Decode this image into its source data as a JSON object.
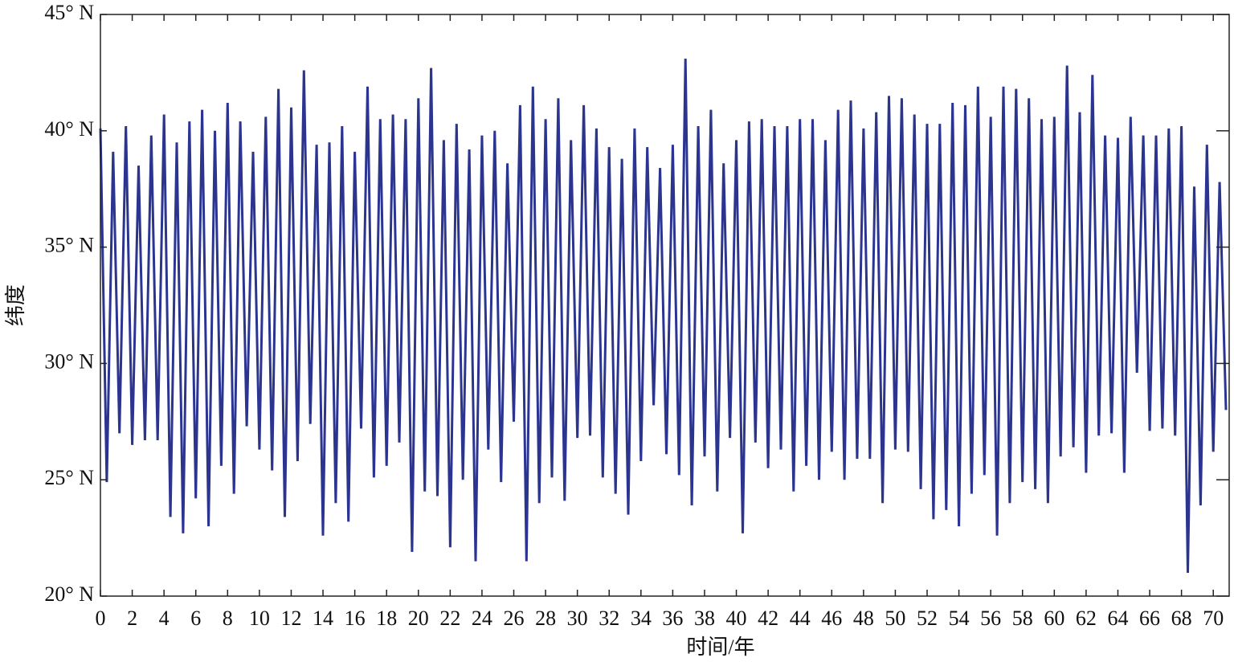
{
  "chart_data": {
    "type": "line",
    "x_label": "时间/年",
    "y_label": "纬度",
    "xlim": [
      0,
      71
    ],
    "ylim": [
      20,
      45
    ],
    "xticks": [
      0,
      2,
      4,
      6,
      8,
      10,
      12,
      14,
      16,
      18,
      20,
      22,
      24,
      26,
      28,
      30,
      32,
      34,
      36,
      38,
      40,
      42,
      44,
      46,
      48,
      50,
      52,
      54,
      56,
      58,
      60,
      62,
      64,
      66,
      68,
      70
    ],
    "yticks": [
      {
        "value": 20,
        "label": "20° N"
      },
      {
        "value": 25,
        "label": "25° N"
      },
      {
        "value": 30,
        "label": "30° N"
      },
      {
        "value": 35,
        "label": "35° N"
      },
      {
        "value": 40,
        "label": "40° N"
      },
      {
        "value": 45,
        "label": "45° N"
      }
    ],
    "series": [
      {
        "color": "#2b3590",
        "x": [
          0,
          0.4,
          0.8,
          1.2,
          1.6,
          2,
          2.4,
          2.8,
          3.2,
          3.6,
          4,
          4.4,
          4.8,
          5.2,
          5.6,
          6,
          6.4,
          6.8,
          7.2,
          7.6,
          8,
          8.4,
          8.8,
          9.2,
          9.6,
          10,
          10.4,
          10.8,
          11.2,
          11.6,
          12,
          12.4,
          12.8,
          13.2,
          13.6,
          14,
          14.4,
          14.8,
          15.2,
          15.6,
          16,
          16.4,
          16.8,
          17.2,
          17.6,
          18,
          18.4,
          18.8,
          19.2,
          19.6,
          20,
          20.4,
          20.8,
          21.2,
          21.6,
          22,
          22.4,
          22.8,
          23.2,
          23.6,
          24,
          24.4,
          24.8,
          25.2,
          25.6,
          26,
          26.4,
          26.8,
          27.2,
          27.6,
          28,
          28.4,
          28.8,
          29.2,
          29.6,
          30,
          30.4,
          30.8,
          31.2,
          31.6,
          32,
          32.4,
          32.8,
          33.2,
          33.6,
          34,
          34.4,
          34.8,
          35.2,
          35.6,
          36,
          36.4,
          36.8,
          37.2,
          37.6,
          38,
          38.4,
          38.8,
          39.2,
          39.6,
          40,
          40.4,
          40.8,
          41.2,
          41.6,
          42,
          42.4,
          42.8,
          43.2,
          43.6,
          44,
          44.4,
          44.8,
          45.2,
          45.6,
          46,
          46.4,
          46.8,
          47.2,
          47.6,
          48,
          48.4,
          48.8,
          49.2,
          49.6,
          50,
          50.4,
          50.8,
          51.2,
          51.6,
          52,
          52.4,
          52.8,
          53.2,
          53.6,
          54,
          54.4,
          54.8,
          55.2,
          55.6,
          56,
          56.4,
          56.8,
          57.2,
          57.6,
          58,
          58.4,
          58.8,
          59.2,
          59.6,
          60,
          60.4,
          60.8,
          61.2,
          61.6,
          62,
          62.4,
          62.8,
          63.2,
          63.6,
          64,
          64.4,
          64.8,
          65.2,
          65.6,
          66,
          66.4,
          66.8,
          67.2,
          67.6,
          68,
          68.4,
          68.8,
          69.2,
          69.6,
          70,
          70.4,
          70.8
        ],
        "values": [
          40.1,
          24.9,
          39.1,
          27.0,
          40.2,
          26.5,
          38.5,
          26.7,
          39.8,
          26.7,
          40.7,
          23.4,
          39.5,
          22.7,
          40.4,
          24.2,
          40.9,
          23.0,
          40.0,
          25.6,
          41.2,
          24.4,
          40.4,
          27.3,
          39.1,
          26.3,
          40.6,
          25.4,
          41.8,
          23.4,
          41.0,
          25.8,
          42.6,
          27.4,
          39.4,
          22.6,
          39.5,
          24.0,
          40.2,
          23.2,
          39.1,
          27.2,
          41.9,
          25.1,
          40.5,
          25.6,
          40.7,
          26.6,
          40.5,
          21.9,
          41.4,
          24.5,
          42.7,
          24.3,
          39.6,
          22.1,
          40.3,
          25.0,
          39.2,
          21.5,
          39.8,
          26.3,
          40.0,
          24.9,
          38.6,
          27.5,
          41.1,
          21.5,
          41.9,
          24.0,
          40.5,
          25.1,
          41.4,
          24.1,
          39.6,
          26.8,
          41.1,
          26.9,
          40.1,
          25.1,
          39.3,
          24.4,
          38.8,
          23.5,
          40.1,
          25.8,
          39.3,
          28.2,
          38.4,
          26.1,
          39.4,
          25.2,
          43.1,
          23.9,
          40.2,
          26.0,
          40.9,
          24.5,
          38.6,
          26.8,
          39.6,
          22.7,
          40.4,
          26.6,
          40.5,
          25.5,
          40.2,
          26.3,
          40.2,
          24.5,
          40.5,
          25.6,
          40.5,
          25.0,
          39.6,
          26.2,
          40.9,
          25.0,
          41.3,
          25.9,
          40.1,
          25.9,
          40.8,
          24.0,
          41.5,
          26.3,
          41.4,
          26.2,
          40.7,
          24.6,
          40.3,
          23.3,
          40.3,
          23.7,
          41.2,
          23.0,
          41.1,
          24.4,
          41.9,
          25.2,
          40.6,
          22.6,
          41.9,
          24.0,
          41.8,
          24.9,
          41.4,
          24.6,
          40.5,
          24.0,
          40.6,
          26.0,
          42.8,
          26.4,
          40.8,
          25.3,
          42.4,
          26.9,
          39.8,
          27.0,
          39.7,
          25.3,
          40.6,
          29.6,
          39.8,
          27.1,
          39.8,
          27.2,
          40.1,
          26.9,
          40.2,
          21.0,
          37.6,
          23.9,
          39.4,
          26.2,
          37.8,
          28.0
        ]
      }
    ]
  }
}
